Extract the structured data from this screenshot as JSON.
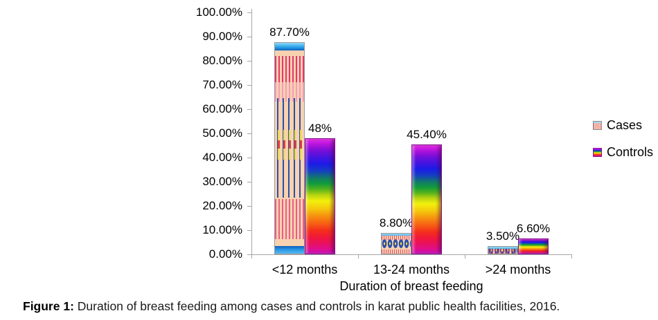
{
  "figure": {
    "caption_prefix": "Figure 1:",
    "caption_text": " Duration of breast feeding among cases and controls in karat public health facilities, 2016."
  },
  "chart_data": {
    "type": "bar",
    "title": "",
    "categories": [
      "<12 months",
      "13-24 months",
      ">24 months"
    ],
    "series": [
      {
        "name": "Cases",
        "values": [
          87.7,
          8.8,
          3.5
        ],
        "value_labels": [
          "87.70%",
          "8.80%",
          "3.50%"
        ]
      },
      {
        "name": "Controls",
        "values": [
          48,
          45.4,
          6.6
        ],
        "value_labels": [
          "48%",
          "45.40%",
          "6.60%"
        ]
      }
    ],
    "xlabel": "Duration of breast feeding",
    "ylabel": "",
    "ylim": [
      0,
      100
    ],
    "ytick_labels": [
      "100.00%",
      "90.00%",
      "80.00%",
      "70.00%",
      "60.00%",
      "50.00%",
      "40.00%",
      "30.00%",
      "20.00%",
      "10.00%",
      "0.00%"
    ],
    "grid": false,
    "legend_position": "right",
    "colors": {
      "axis_line": "#A6A6A6",
      "text": "#000000",
      "cases_pattern_base": "#F8D2B0",
      "cases_pattern_stripe": "#E8356D",
      "cases_pattern_line": "#2B4FA8",
      "cases_pattern_cap": "#2196F3",
      "cases_pattern_accent": "#F7E03C",
      "controls_rainbow": [
        "#EE2AEE",
        "#7A0FD8",
        "#1B1BE8",
        "#129C3A",
        "#B8D411",
        "#F2F00C",
        "#F6920F",
        "#F42D1C",
        "#E8115F",
        "#CE0DC0"
      ]
    }
  }
}
